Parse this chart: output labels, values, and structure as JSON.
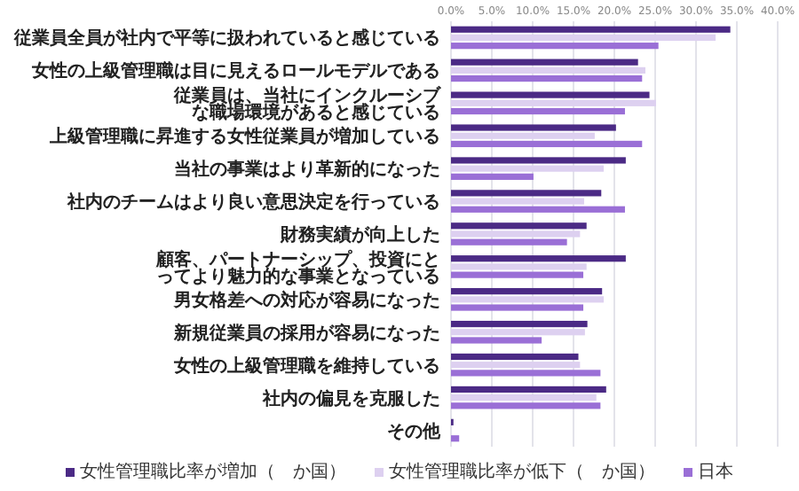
{
  "chart_data": {
    "type": "bar",
    "orientation": "horizontal",
    "categories": [
      "従業員全員が社内で平等に扱われていると感じている",
      "女性の上級管理職は目に見えるロールモデルである",
      "従業員は、当社にインクルーシブな職場環境があると感じている",
      "上級管理職に昇進する女性従業員が増加している",
      "当社の事業はより革新的になった",
      "社内のチームはより良い意思決定を行っている",
      "財務実績が向上した",
      "顧客、パートナーシップ、投資にとってより魅力的な事業となっている",
      "男女格差への対応が容易になった",
      "新規従業員の採用が容易になった",
      "女性の上級管理職を維持している",
      "社内の偏見を克服した",
      "その他"
    ],
    "series": [
      {
        "name": "女性管理職比率が増加（　か国）",
        "color": "#4b2a85",
        "values": [
          34.2,
          22.9,
          24.3,
          20.2,
          21.4,
          18.4,
          16.6,
          21.4,
          18.5,
          16.7,
          15.6,
          19.0,
          0.3
        ]
      },
      {
        "name": "女性管理職比率が低下（　か国）",
        "color": "#ddd0f0",
        "values": [
          32.4,
          23.8,
          25.1,
          17.6,
          18.7,
          16.3,
          15.8,
          16.6,
          18.7,
          16.4,
          15.8,
          17.8,
          0
        ]
      },
      {
        "name": "日本",
        "color": "#9a6fd6",
        "values": [
          25.4,
          23.4,
          21.3,
          23.4,
          10.1,
          21.3,
          14.2,
          16.2,
          16.2,
          11.1,
          18.3,
          18.3,
          1.0
        ]
      }
    ],
    "xlim": [
      0,
      40
    ],
    "xticks": [
      {
        "value": 0,
        "label": "0.0%"
      },
      {
        "value": 5,
        "label": "5.0%"
      },
      {
        "value": 10,
        "label": "10.0%"
      },
      {
        "value": 15,
        "label": "15.0%"
      },
      {
        "value": 20,
        "label": "20.0%"
      },
      {
        "value": 25,
        "label": "25.0%"
      },
      {
        "value": 30,
        "label": "30.0%"
      },
      {
        "value": 35,
        "label": "35.0%"
      },
      {
        "value": 40,
        "label": "40.0%"
      }
    ],
    "grid": "x",
    "legend": "bottom"
  }
}
